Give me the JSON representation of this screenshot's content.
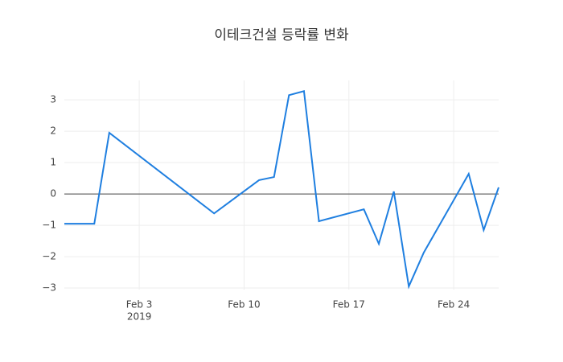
{
  "chart_data": {
    "type": "line",
    "title": "이테크건설 등락률 변화",
    "x": [
      "2019-01-29",
      "2019-01-31",
      "2019-02-01",
      "2019-02-08",
      "2019-02-11",
      "2019-02-12",
      "2019-02-13",
      "2019-02-14",
      "2019-02-15",
      "2019-02-18",
      "2019-02-19",
      "2019-02-20",
      "2019-02-21",
      "2019-02-22",
      "2019-02-25",
      "2019-02-26",
      "2019-02-27"
    ],
    "series": [
      {
        "color": "#1f7fe0",
        "values": [
          -0.95,
          -0.95,
          1.95,
          -0.62,
          0.44,
          0.54,
          3.15,
          3.28,
          -0.87,
          -0.49,
          -1.59,
          0.08,
          -2.95,
          -1.87,
          0.64,
          -1.15,
          0.21
        ]
      }
    ],
    "xlim": [
      "2019-01-29",
      "2019-02-27"
    ],
    "xticks": [
      {
        "value": "2019-02-03",
        "label": "Feb 3",
        "sublabel": "2019"
      },
      {
        "value": "2019-02-10",
        "label": "Feb 10"
      },
      {
        "value": "2019-02-17",
        "label": "Feb 17"
      },
      {
        "value": "2019-02-24",
        "label": "Feb 24"
      }
    ],
    "ylim": [
      -3.05,
      3.62
    ],
    "yticks": [
      {
        "value": -3,
        "label": "−3"
      },
      {
        "value": -2,
        "label": "−2"
      },
      {
        "value": -1,
        "label": "−1"
      },
      0,
      1,
      2,
      3
    ],
    "grid": true,
    "zeroline": true
  }
}
